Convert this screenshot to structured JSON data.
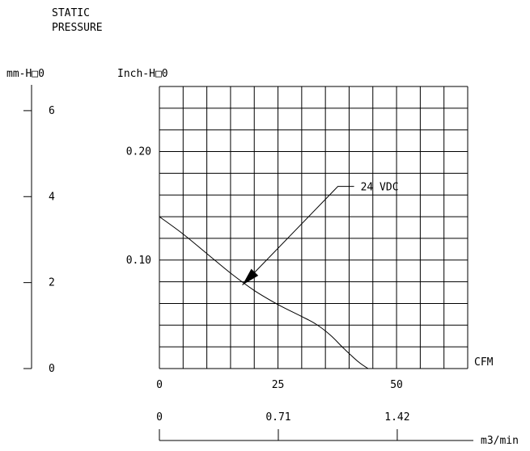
{
  "chart_data": {
    "type": "line",
    "title_lines": [
      "STATIC",
      "PRESSURE"
    ],
    "left_axis_label": "mm-H□0",
    "ylabel": "Inch-H□0",
    "xlabel": "CFM",
    "secondary_xlabel": "m3/min",
    "xlim": [
      0,
      65
    ],
    "ylim": [
      0,
      0.26
    ],
    "left_axis_lim": [
      0,
      6.6
    ],
    "x_ticks": [
      "0",
      "25",
      "50"
    ],
    "x_tick_values": [
      0,
      25,
      50
    ],
    "y_ticks": [
      "0.10",
      "0.20"
    ],
    "y_tick_values": [
      0.1,
      0.2
    ],
    "left_axis_ticks": [
      "0",
      "2",
      "4",
      "6"
    ],
    "left_axis_tick_values": [
      0,
      2,
      4,
      6
    ],
    "secondary_x_ticks": [
      "0",
      "0.71",
      "1.42"
    ],
    "secondary_x_tick_values": [
      0,
      0.71,
      1.42
    ],
    "grid": true,
    "series": [
      {
        "name": "24 VDC",
        "x": [
          0,
          5,
          10,
          15,
          20,
          25,
          30,
          33,
          36,
          39,
          42,
          44
        ],
        "y": [
          0.14,
          0.124,
          0.106,
          0.088,
          0.072,
          0.059,
          0.048,
          0.041,
          0.031,
          0.018,
          0.006,
          0
        ]
      }
    ],
    "annotations": [
      {
        "text": "24 VDC",
        "points_to": [
          17.5,
          0.077
        ]
      }
    ]
  }
}
